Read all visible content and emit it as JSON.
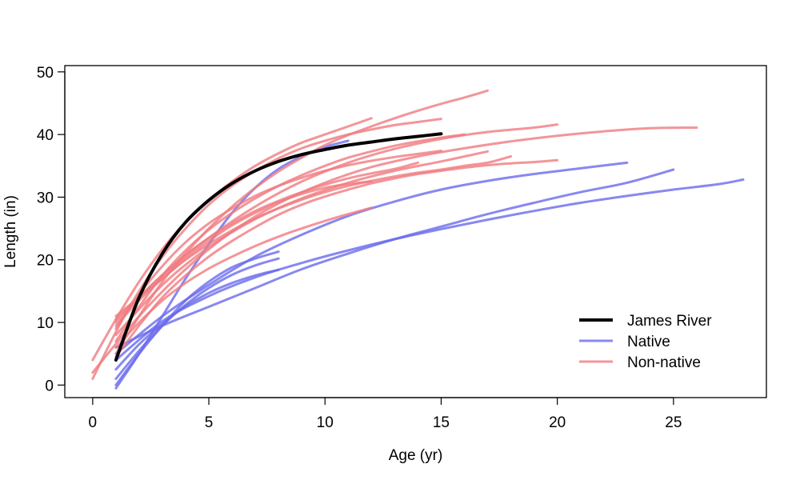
{
  "chart_data": {
    "type": "line",
    "title": "",
    "xlabel": "Age (yr)",
    "ylabel": "Length (in)",
    "xlim": [
      -1.2,
      29.0
    ],
    "ylim": [
      -2,
      51
    ],
    "xticks": [
      0,
      5,
      10,
      15,
      20,
      25
    ],
    "yticks": [
      0,
      10,
      20,
      30,
      40,
      50
    ],
    "grid": false,
    "legend_position": "bottom-right",
    "legend": [
      {
        "label": "James River",
        "color": "#000000"
      },
      {
        "label": "Native",
        "color": "#6a6aee"
      },
      {
        "label": "Non-native",
        "color": "#f07a80"
      }
    ],
    "series": [
      {
        "name": "James River",
        "group": "james",
        "points": [
          [
            1,
            4
          ],
          [
            2,
            14
          ],
          [
            3,
            21
          ],
          [
            4,
            26
          ],
          [
            5,
            29.5
          ],
          [
            6,
            32.2
          ],
          [
            7,
            34.2
          ],
          [
            8,
            35.7
          ],
          [
            9,
            36.8
          ],
          [
            10,
            37.6
          ],
          [
            11,
            38.3
          ],
          [
            12,
            38.8
          ],
          [
            13,
            39.3
          ],
          [
            14,
            39.7
          ],
          [
            15,
            40.1
          ]
        ]
      },
      {
        "group": "native",
        "points": [
          [
            1,
            0
          ],
          [
            2,
            5
          ],
          [
            3,
            9.5
          ],
          [
            4,
            13.5
          ],
          [
            5,
            16.5
          ],
          [
            6,
            18.8
          ],
          [
            7,
            20.2
          ],
          [
            8,
            21.3
          ]
        ]
      },
      {
        "group": "native",
        "points": [
          [
            1,
            1
          ],
          [
            2,
            5.5
          ],
          [
            3,
            9.5
          ],
          [
            4,
            12.8
          ],
          [
            5,
            15.5
          ],
          [
            6,
            17.6
          ],
          [
            7,
            19.1
          ],
          [
            8,
            20.2
          ]
        ]
      },
      {
        "group": "native",
        "points": [
          [
            1,
            2.5
          ],
          [
            2,
            6.5
          ],
          [
            3,
            9.8
          ],
          [
            4,
            12.6
          ],
          [
            5,
            14.7
          ],
          [
            6,
            16.3
          ],
          [
            7,
            17.5
          ],
          [
            8,
            18.4
          ]
        ]
      },
      {
        "group": "native",
        "points": [
          [
            1,
            -0.5
          ],
          [
            2,
            5
          ],
          [
            3,
            11
          ],
          [
            4,
            17
          ],
          [
            5,
            22.5
          ],
          [
            6,
            27.5
          ],
          [
            7,
            31.5
          ],
          [
            8,
            34.5
          ],
          [
            9,
            36.5
          ],
          [
            10,
            38
          ],
          [
            11,
            39
          ]
        ]
      },
      {
        "group": "native",
        "points": [
          [
            1,
            4
          ],
          [
            3,
            10.2
          ],
          [
            5,
            14.2
          ],
          [
            7,
            17.2
          ],
          [
            9,
            19.5
          ],
          [
            11,
            21.5
          ],
          [
            13,
            23.3
          ],
          [
            15,
            24.9
          ],
          [
            17,
            26.4
          ],
          [
            19,
            27.8
          ],
          [
            21,
            29.1
          ],
          [
            23,
            30.2
          ],
          [
            25,
            31.2
          ],
          [
            27,
            32.1
          ],
          [
            28,
            32.8
          ]
        ]
      },
      {
        "group": "native",
        "points": [
          [
            1,
            6
          ],
          [
            3,
            9.5
          ],
          [
            5,
            12.5
          ],
          [
            7,
            15.5
          ],
          [
            9,
            18.5
          ],
          [
            11,
            21
          ],
          [
            13,
            23.3
          ],
          [
            15,
            25.3
          ],
          [
            17,
            27.3
          ],
          [
            19,
            29.1
          ],
          [
            21,
            30.8
          ],
          [
            23,
            32.3
          ],
          [
            25,
            34.4
          ]
        ]
      },
      {
        "group": "native",
        "points": [
          [
            1,
            5
          ],
          [
            3,
            11
          ],
          [
            5,
            16
          ],
          [
            7,
            20.5
          ],
          [
            9,
            24
          ],
          [
            11,
            27
          ],
          [
            13,
            29.3
          ],
          [
            15,
            31.2
          ],
          [
            17,
            32.6
          ],
          [
            19,
            33.7
          ],
          [
            21,
            34.6
          ],
          [
            23,
            35.5
          ]
        ]
      },
      {
        "group": "non-native",
        "points": [
          [
            0,
            4
          ],
          [
            1,
            10.5
          ],
          [
            2,
            16.5
          ],
          [
            3,
            21.7
          ],
          [
            4,
            26
          ],
          [
            5,
            29.5
          ],
          [
            6,
            32.5
          ],
          [
            7,
            35
          ],
          [
            8,
            37
          ],
          [
            9,
            38.7
          ],
          [
            10,
            40
          ],
          [
            11,
            41.3
          ],
          [
            12,
            42.6
          ]
        ]
      },
      {
        "group": "non-native",
        "points": [
          [
            0,
            1
          ],
          [
            1,
            8.5
          ],
          [
            2,
            15
          ],
          [
            3,
            20.5
          ],
          [
            4,
            25
          ],
          [
            5,
            28.8
          ],
          [
            6,
            31.8
          ],
          [
            7,
            34.2
          ],
          [
            8,
            36.2
          ],
          [
            9,
            37.8
          ],
          [
            10,
            39
          ],
          [
            11,
            40
          ],
          [
            12,
            40.8
          ],
          [
            13,
            41.5
          ],
          [
            14,
            42
          ],
          [
            15,
            42.5
          ]
        ]
      },
      {
        "group": "non-native",
        "points": [
          [
            1,
            5
          ],
          [
            2,
            11
          ],
          [
            3,
            16.5
          ],
          [
            4,
            21
          ],
          [
            5,
            25
          ],
          [
            6,
            28.5
          ],
          [
            7,
            31.5
          ],
          [
            8,
            34.1
          ],
          [
            9,
            36.3
          ],
          [
            10,
            38.3
          ],
          [
            11,
            39.9
          ],
          [
            12,
            41.3
          ],
          [
            13,
            42.6
          ],
          [
            14,
            43.8
          ],
          [
            15,
            44.9
          ],
          [
            16,
            45.9
          ],
          [
            17,
            47
          ]
        ]
      },
      {
        "group": "non-native",
        "points": [
          [
            1,
            7
          ],
          [
            2,
            12.5
          ],
          [
            3,
            17.5
          ],
          [
            4,
            21.5
          ],
          [
            5,
            24.8
          ],
          [
            6,
            27.5
          ],
          [
            7,
            29.8
          ],
          [
            8,
            31.8
          ],
          [
            9,
            33.5
          ],
          [
            10,
            35
          ],
          [
            11,
            36.3
          ],
          [
            12,
            37.3
          ],
          [
            13,
            38.2
          ],
          [
            14,
            38.9
          ],
          [
            15,
            39.5
          ],
          [
            16,
            40
          ]
        ]
      },
      {
        "group": "non-native",
        "points": [
          [
            1,
            10
          ],
          [
            2,
            14
          ],
          [
            3,
            17.6
          ],
          [
            4,
            20.8
          ],
          [
            5,
            23.5
          ],
          [
            6,
            25.8
          ],
          [
            7,
            27.8
          ],
          [
            8,
            29.4
          ],
          [
            9,
            30.8
          ],
          [
            10,
            32
          ],
          [
            11,
            33
          ],
          [
            12,
            33.8
          ],
          [
            13,
            34.5
          ],
          [
            14,
            35.5
          ]
        ]
      },
      {
        "group": "non-native",
        "points": [
          [
            1,
            11
          ],
          [
            2,
            14
          ],
          [
            3,
            17
          ],
          [
            4,
            20
          ],
          [
            5,
            22.5
          ],
          [
            6,
            24.7
          ],
          [
            7,
            26.6
          ],
          [
            8,
            28.2
          ],
          [
            9,
            29.6
          ],
          [
            10,
            30.8
          ],
          [
            11,
            31.8
          ],
          [
            12,
            32.6
          ],
          [
            13,
            33.3
          ],
          [
            14,
            33.9
          ],
          [
            15,
            34.4
          ],
          [
            16,
            35
          ],
          [
            17,
            35.5
          ],
          [
            18,
            36.5
          ]
        ]
      },
      {
        "group": "non-native",
        "points": [
          [
            1,
            9
          ],
          [
            2,
            14.5
          ],
          [
            3,
            19
          ],
          [
            4,
            22.8
          ],
          [
            5,
            25.8
          ],
          [
            6,
            28.2
          ],
          [
            7,
            30.2
          ],
          [
            8,
            31.8
          ],
          [
            9,
            33.1
          ],
          [
            10,
            34.2
          ],
          [
            11,
            35.1
          ],
          [
            12,
            35.8
          ],
          [
            13,
            36.4
          ],
          [
            14,
            36.9
          ],
          [
            15,
            37.4
          ]
        ]
      },
      {
        "group": "non-native",
        "points": [
          [
            1,
            8
          ],
          [
            3,
            16
          ],
          [
            5,
            22
          ],
          [
            7,
            26.5
          ],
          [
            9,
            29.8
          ],
          [
            11,
            32.3
          ],
          [
            13,
            34.2
          ],
          [
            15,
            35.7
          ],
          [
            17,
            37.3
          ]
        ]
      },
      {
        "group": "non-native",
        "points": [
          [
            0,
            2
          ],
          [
            2,
            11
          ],
          [
            4,
            18.5
          ],
          [
            6,
            24.5
          ],
          [
            8,
            29
          ],
          [
            10,
            32.3
          ],
          [
            12,
            34.8
          ],
          [
            14,
            36.5
          ],
          [
            16,
            37.8
          ],
          [
            18,
            38.9
          ],
          [
            20,
            39.8
          ],
          [
            22,
            40.5
          ],
          [
            24,
            41
          ],
          [
            26,
            41.1
          ]
        ]
      },
      {
        "group": "non-native",
        "points": [
          [
            1,
            10.5
          ],
          [
            3,
            17.5
          ],
          [
            5,
            23.5
          ],
          [
            7,
            28.5
          ],
          [
            9,
            32.5
          ],
          [
            11,
            35.5
          ],
          [
            13,
            37.7
          ],
          [
            15,
            39.3
          ],
          [
            17,
            40.4
          ],
          [
            19,
            41.1
          ],
          [
            20,
            41.6
          ]
        ]
      },
      {
        "group": "non-native",
        "points": [
          [
            1,
            4.5
          ],
          [
            2,
            9.5
          ],
          [
            3,
            14
          ],
          [
            4,
            17.5
          ],
          [
            5,
            20.5
          ],
          [
            6,
            23
          ],
          [
            7,
            25.2
          ],
          [
            8,
            27.2
          ],
          [
            9,
            28.8
          ],
          [
            10,
            30.1
          ],
          [
            11,
            31.2
          ],
          [
            12,
            32.2
          ],
          [
            13,
            33
          ],
          [
            14,
            33.7
          ],
          [
            15,
            34.2
          ],
          [
            16,
            34.7
          ],
          [
            17,
            35.1
          ],
          [
            18,
            35.4
          ],
          [
            19,
            35.6
          ],
          [
            20,
            35.9
          ]
        ]
      },
      {
        "group": "non-native",
        "points": [
          [
            1,
            6
          ],
          [
            2,
            10
          ],
          [
            3,
            13.5
          ],
          [
            4,
            16.3
          ],
          [
            5,
            18.6
          ],
          [
            6,
            20.5
          ],
          [
            7,
            22.2
          ],
          [
            8,
            23.7
          ],
          [
            9,
            25
          ],
          [
            10,
            26.2
          ],
          [
            11,
            27.3
          ],
          [
            12,
            28.3
          ]
        ]
      },
      {
        "group": "non-native",
        "points": [
          [
            1,
            9.5
          ],
          [
            2,
            13.5
          ],
          [
            3,
            17
          ],
          [
            4,
            20.2
          ],
          [
            5,
            23
          ],
          [
            6,
            25.5
          ],
          [
            7,
            27.5
          ],
          [
            8,
            29.2
          ],
          [
            9,
            30.5
          ],
          [
            10,
            31.5
          ],
          [
            11,
            32.1
          ],
          [
            12,
            32.5
          ]
        ]
      }
    ]
  }
}
